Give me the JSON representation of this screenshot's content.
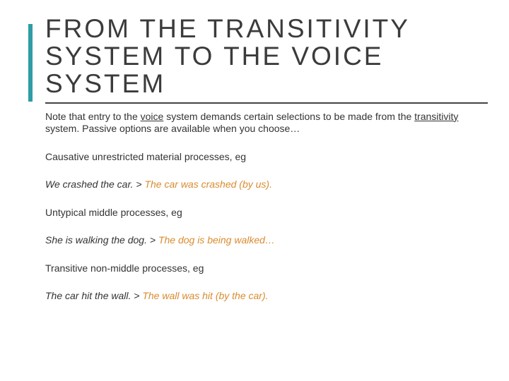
{
  "accent_color": "#2e9da6",
  "orange_color": "#d98b2e",
  "title": "FROM THE TRANSITIVITY SYSTEM TO THE VOICE SYSTEM",
  "intro_pre": "Note that entry to the ",
  "intro_u1": "voice",
  "intro_mid": " system demands certain selections to be made from the ",
  "intro_u2": "transitivity",
  "intro_post": " system. Passive options are available when you choose…",
  "p1": "Causative unrestricted material processes, eg",
  "p1_ex_lead": "We crashed the car. > ",
  "p1_ex_orange": "The car was crashed (by us).",
  "p2": "Untypical middle processes, eg",
  "p2_ex_lead": "She is walking the dog. > ",
  "p2_ex_orange": "The dog is being walked…",
  "p3": "Transitive non-middle processes, eg",
  "p3_ex_lead": "The car hit the wall. > ",
  "p3_ex_orange": "The wall was hit (by the car)."
}
